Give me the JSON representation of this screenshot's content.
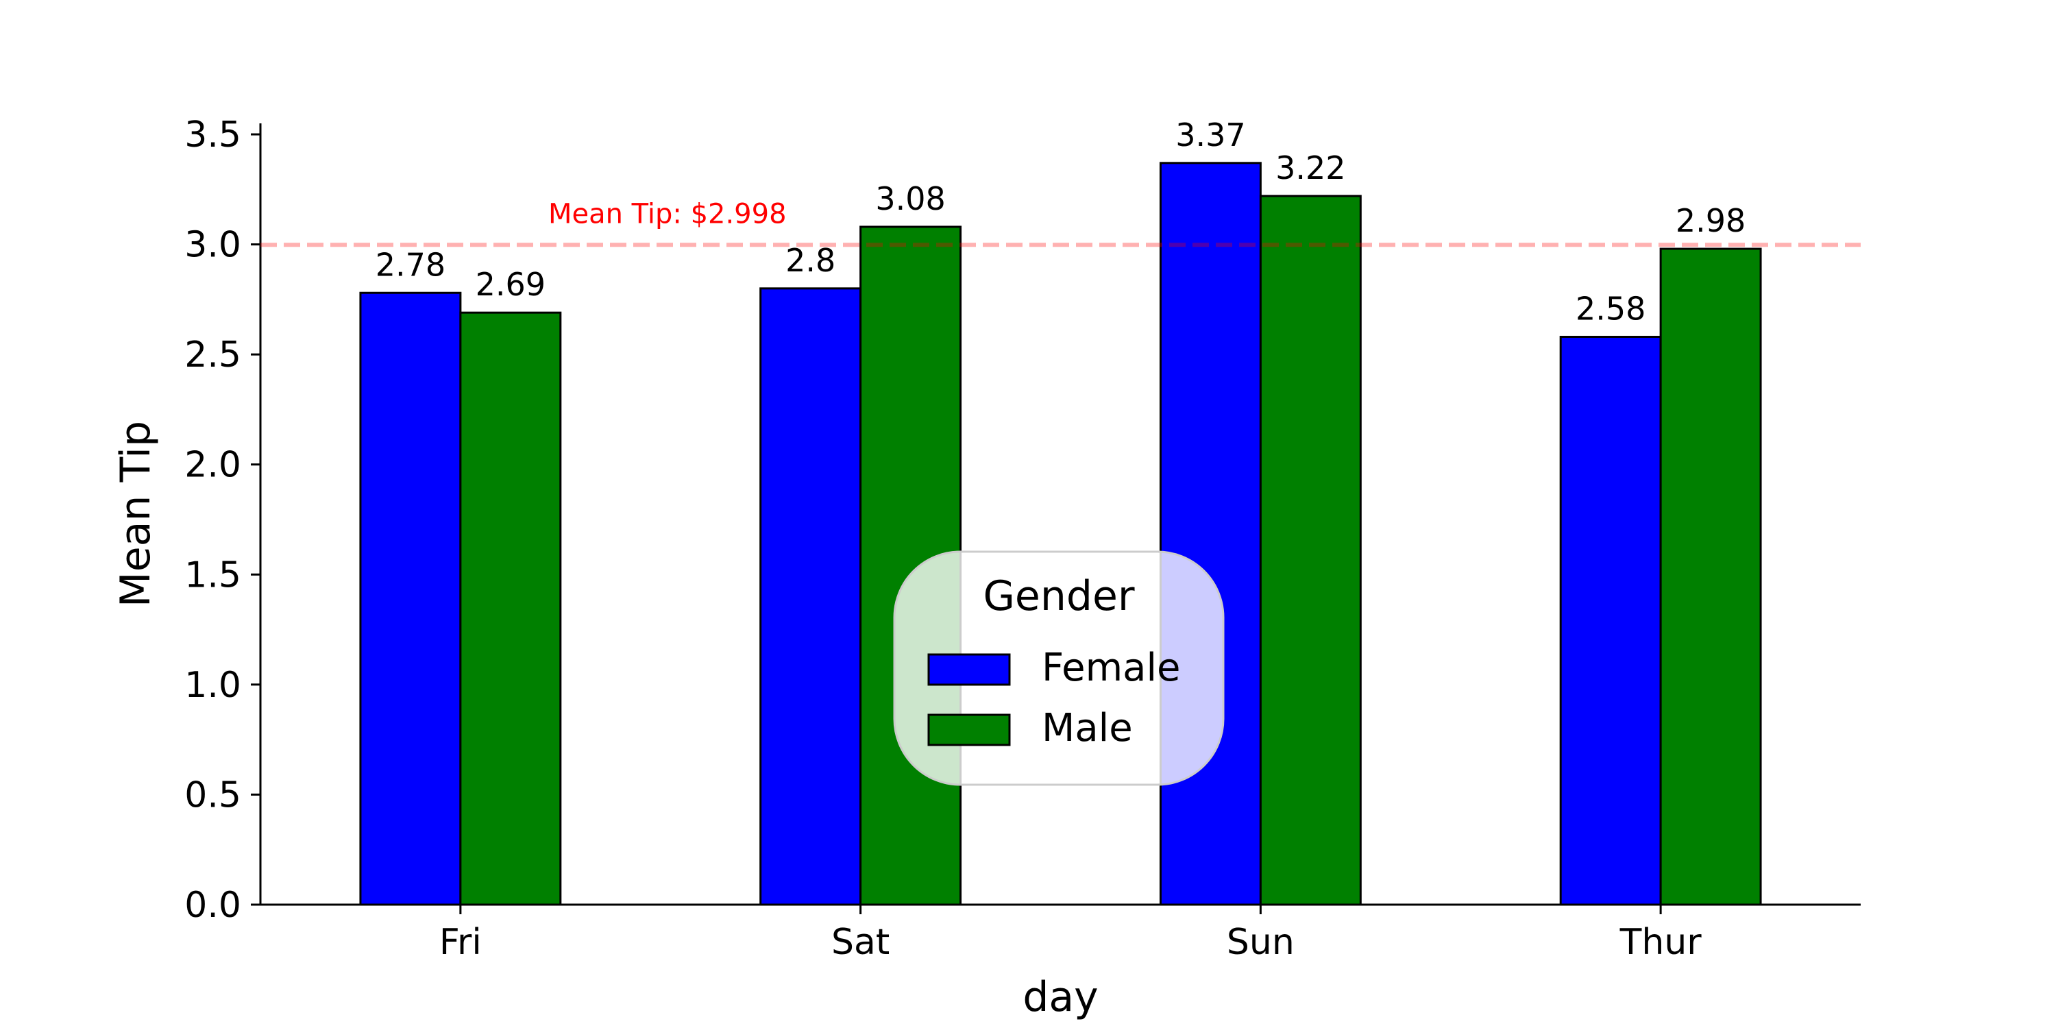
{
  "chart_data": {
    "type": "bar",
    "xlabel": "day",
    "ylabel": "Mean Tip",
    "categories": [
      "Fri",
      "Sat",
      "Sun",
      "Thur"
    ],
    "series": [
      {
        "name": "Female",
        "color": "#0000ff",
        "values": [
          2.78,
          2.8,
          3.37,
          2.58
        ],
        "labels": [
          "2.78",
          "2.8",
          "3.37",
          "2.58"
        ]
      },
      {
        "name": "Male",
        "color": "#008000",
        "values": [
          2.69,
          3.08,
          3.22,
          2.98
        ],
        "labels": [
          "2.69",
          "3.08",
          "3.22",
          "2.98"
        ]
      }
    ],
    "ylim": [
      0,
      3.55
    ],
    "yticks": [
      {
        "value": 0.0,
        "label": "0.0"
      },
      {
        "value": 0.5,
        "label": "0.5"
      },
      {
        "value": 1.0,
        "label": "1.0"
      },
      {
        "value": 1.5,
        "label": "1.5"
      },
      {
        "value": 2.0,
        "label": "2.0"
      },
      {
        "value": 2.5,
        "label": "2.5"
      },
      {
        "value": 3.0,
        "label": "3.0"
      },
      {
        "value": 3.5,
        "label": "3.5"
      }
    ],
    "reference_line": {
      "value": 2.998,
      "label": "Mean Tip: $2.998",
      "color": "#ff0000"
    },
    "legend": {
      "title": "Gender",
      "placement": "center-bottom"
    },
    "grid": false
  }
}
